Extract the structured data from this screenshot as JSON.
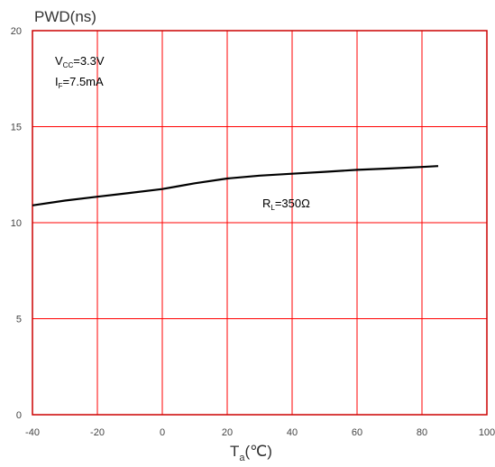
{
  "chart_data": {
    "type": "line",
    "title": "PWD(ns)",
    "xlabel": "T",
    "xlabel_sub": "a",
    "xlabel_unit": "(℃)",
    "xlim": [
      -40,
      100
    ],
    "ylim": [
      0,
      20
    ],
    "xticks": [
      -40,
      -20,
      0,
      20,
      40,
      60,
      80,
      100
    ],
    "yticks": [
      0,
      5,
      10,
      15,
      20
    ],
    "grid": true,
    "colors": {
      "grid": "#ff0000",
      "axes": "#cc0000",
      "line": "#000000"
    },
    "annotations": [
      {
        "main": "V",
        "sub": "CC",
        "rest": "=3.3V"
      },
      {
        "main": "I",
        "sub": "F",
        "rest": "=7.5mA"
      },
      {
        "main": "R",
        "sub": "L",
        "rest": "=350Ω"
      }
    ],
    "series": [
      {
        "x": [
          -40,
          -30,
          -20,
          -10,
          0,
          5,
          10,
          20,
          30,
          40,
          50,
          60,
          70,
          80,
          85
        ],
        "y": [
          10.9,
          11.15,
          11.35,
          11.55,
          11.75,
          11.9,
          12.05,
          12.3,
          12.45,
          12.55,
          12.65,
          12.75,
          12.82,
          12.9,
          12.95
        ]
      }
    ]
  }
}
